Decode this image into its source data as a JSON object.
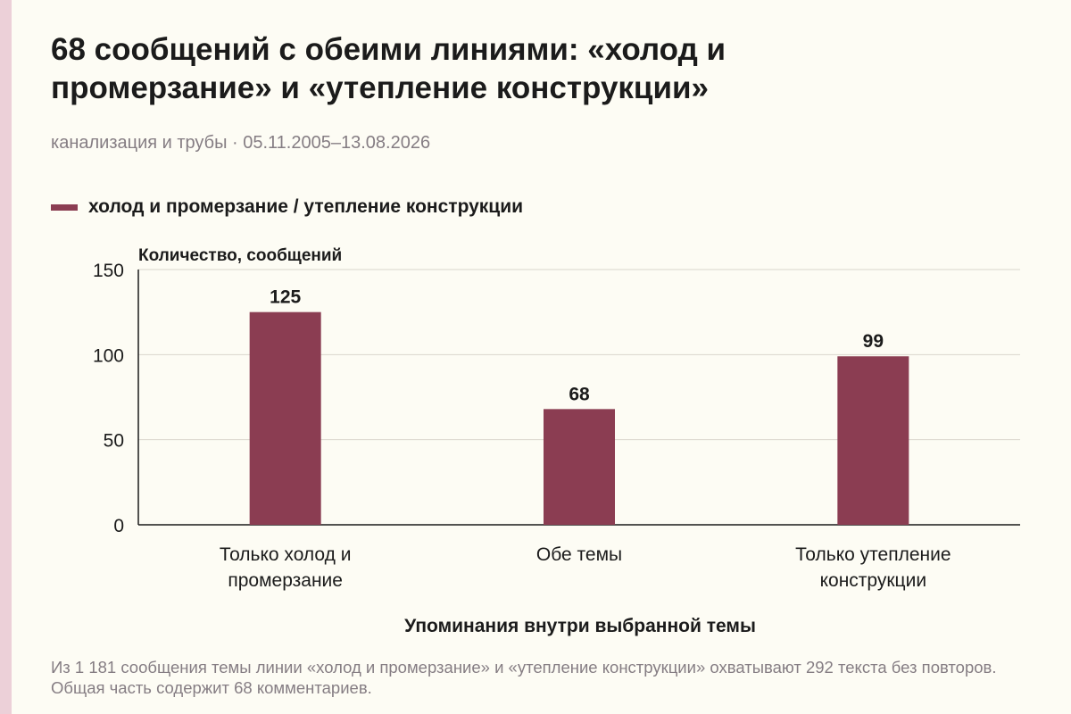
{
  "header": {
    "title": "68 сообщений с обеими линиями: «холод и промерзание» и «утепление конструкции»",
    "subtitle": "канализация и трубы · 05.11.2005–13.08.2026"
  },
  "legend": {
    "label": "холод и промерзание / утепление конструкции"
  },
  "colors": {
    "bar": "#8b3d52",
    "grid": "#d9d6cc",
    "axis": "#1b1b1b",
    "accent_stripe": "#ecd0d8",
    "background": "#fdfcf4"
  },
  "chart_data": {
    "type": "bar",
    "ylabel": "Количество, сообщений",
    "xlabel": "Упоминания внутри выбранной темы",
    "ylim": [
      0,
      150
    ],
    "yticks": [
      0,
      50,
      100,
      150
    ],
    "grid": true,
    "legend_position": "top-left",
    "categories": [
      [
        "Только холод и",
        "промерзание"
      ],
      [
        "Обе темы"
      ],
      [
        "Только утепление",
        "конструкции"
      ]
    ],
    "series": [
      {
        "name": "холод и промерзание / утепление конструкции",
        "values": [
          125,
          68,
          99
        ]
      }
    ]
  },
  "footer": {
    "note": "Из 1 181 сообщения темы линии «холод и промерзание» и «утепление конструкции» охватывают 292 текста без повторов. Общая часть содержит 68 комментариев."
  }
}
